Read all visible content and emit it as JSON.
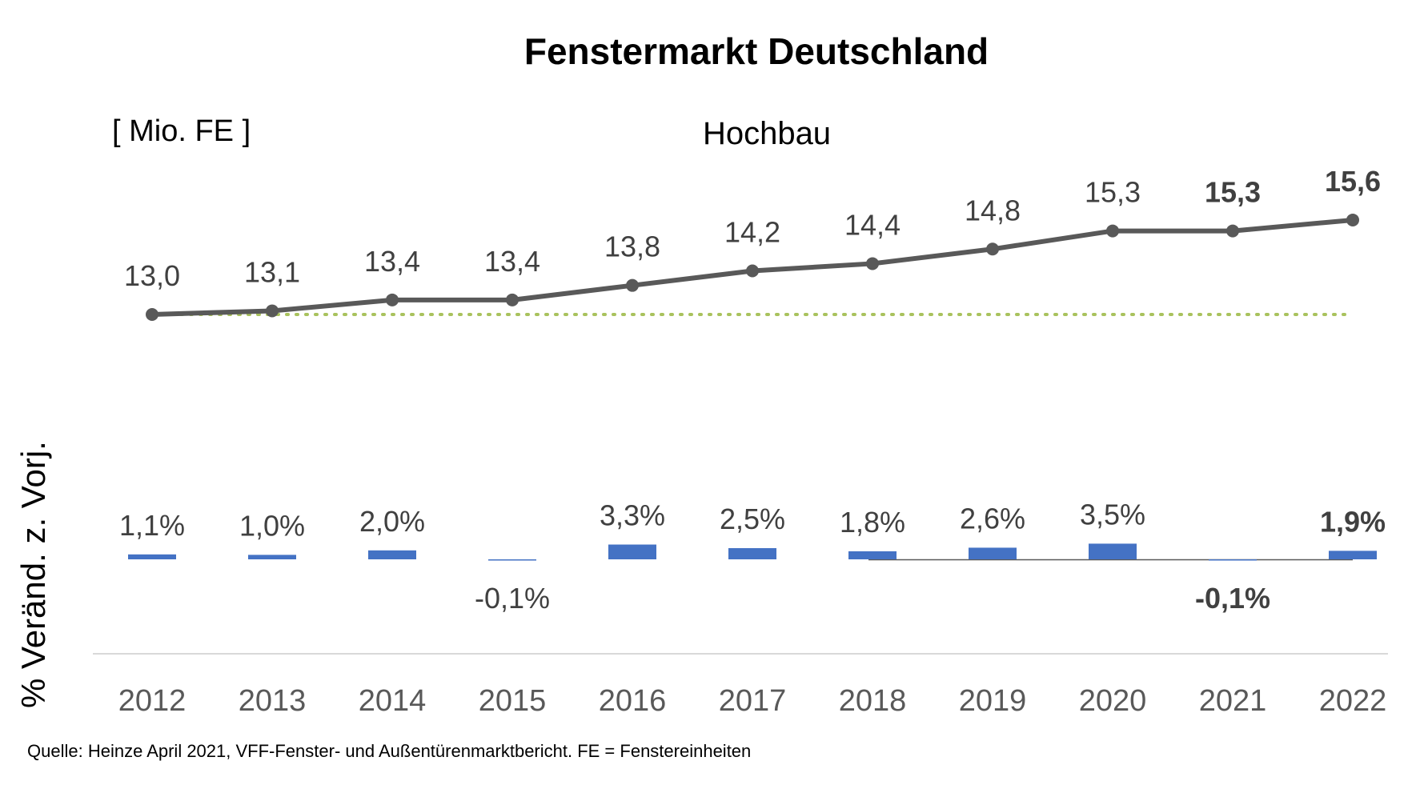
{
  "chart_data": {
    "type": "line+bar",
    "title": "Fenstermarkt Deutschland",
    "unit_label": "[ Mio. FE ]",
    "subtitle": "Hochbau",
    "ylabel": "% Veränd. z. Vorj.",
    "source": "Quelle: Heinze April 2021, VFF-Fenster- und Außentürenmarktbericht. FE = Fenstereinheiten",
    "categories": [
      "2012",
      "2013",
      "2014",
      "2015",
      "2016",
      "2017",
      "2018",
      "2019",
      "2020",
      "2021",
      "2022"
    ],
    "line_series": {
      "values": [
        13.0,
        13.1,
        13.4,
        13.4,
        13.8,
        14.2,
        14.4,
        14.8,
        15.3,
        15.3,
        15.6
      ],
      "labels": [
        "13,0",
        "13,1",
        "13,4",
        "13,4",
        "13,8",
        "14,2",
        "14,4",
        "14,8",
        "15,3",
        "15,3",
        "15,6"
      ],
      "bold": [
        false,
        false,
        false,
        false,
        false,
        false,
        false,
        false,
        false,
        true,
        true
      ],
      "color": "#595959",
      "baseline_value": 13.0,
      "baseline_color": "#a9c25d"
    },
    "bar_series": {
      "values": [
        1.1,
        1.0,
        2.0,
        -0.1,
        3.3,
        2.5,
        1.8,
        2.6,
        3.5,
        -0.1,
        1.9
      ],
      "labels": [
        "1,1%",
        "1,0%",
        "2,0%",
        "-0,1%",
        "3,3%",
        "2,5%",
        "1,8%",
        "2,6%",
        "3,5%",
        "-0,1%",
        "1,9%"
      ],
      "bold": [
        false,
        false,
        false,
        false,
        false,
        false,
        false,
        false,
        false,
        true,
        true
      ],
      "color": "#4472c4"
    }
  }
}
